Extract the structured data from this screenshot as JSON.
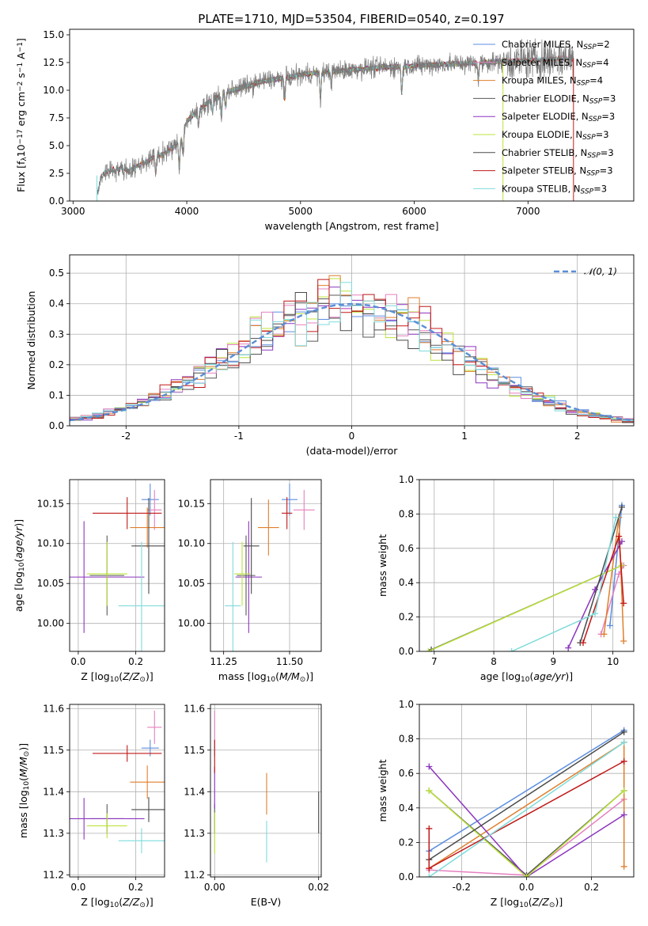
{
  "figure_title": "PLATE=1710, MJD=53504, FIBERID=0540, z=0.197",
  "colors": {
    "Chabrier MILES": "#5b8ee0",
    "Salpeter MILES": "#e580c0",
    "Kroupa MILES": "#e07f2c",
    "Chabrier ELODIE": "#585858",
    "Salpeter ELODIE": "#8c35bf",
    "Kroupa ELODIE": "#bce33a",
    "Chabrier STELIB": "#4a4a4a",
    "Salpeter STELIB": "#c01818",
    "Kroupa STELIB": "#7fdbdb"
  },
  "chart_data": [
    {
      "id": "spectrum",
      "type": "line",
      "xlabel": "wavelength [Angstrom, rest frame]",
      "ylabel": "Flux [f_λ10^-17 erg cm^-2 s^-1 A^-1]",
      "xlim": [
        2970,
        7930
      ],
      "ylim": [
        0,
        15.5
      ],
      "xticks": [
        3000,
        4000,
        5000,
        6000,
        7000
      ],
      "yticks": [
        0.0,
        2.5,
        5.0,
        7.5,
        10.0,
        12.5,
        15.0
      ],
      "legend_position": "top-right",
      "legend": [
        "Chabrier MILES, N_SSP=2",
        "Salpeter MILES, N_SSP=4",
        "Kroupa MILES, N_SSP=4",
        "Chabrier ELODIE, N_SSP=3",
        "Salpeter ELODIE, N_SSP=3",
        "Kroupa ELODIE, N_SSP=3",
        "Chabrier STELIB, N_SSP=3",
        "Salpeter STELIB, N_SSP=3",
        "Kroupa STELIB, N_SSP=3"
      ],
      "continuum": {
        "x": [
          3210,
          3250,
          3300,
          3400,
          3500,
          3600,
          3700,
          3800,
          3900,
          3950,
          4000,
          4100,
          4200,
          4300,
          4400,
          4500,
          4600,
          4700,
          4800,
          4900,
          5000,
          5200,
          5400,
          5600,
          5800,
          6000,
          6200,
          6400,
          6600,
          6800,
          7000,
          7200,
          7400
        ],
        "y": [
          0.3,
          2.3,
          2.7,
          2.9,
          2.8,
          3.3,
          3.9,
          4.3,
          5.0,
          5.6,
          7.2,
          8.2,
          9.0,
          9.5,
          10.0,
          10.3,
          10.6,
          10.9,
          11.0,
          11.2,
          11.4,
          11.6,
          11.8,
          12.0,
          12.1,
          12.2,
          12.3,
          12.4,
          12.5,
          12.6,
          12.7,
          12.8,
          12.9
        ]
      }
    },
    {
      "id": "residuals",
      "type": "line",
      "xlabel": "(data-model)/error",
      "ylabel": "Normed distribution",
      "xlim": [
        -2.5,
        2.5
      ],
      "ylim": [
        0,
        0.56
      ],
      "xticks": [
        -2,
        -1,
        0,
        1,
        2
      ],
      "yticks": [
        0.0,
        0.1,
        0.2,
        0.3,
        0.4,
        0.5
      ],
      "grid": true,
      "legend": [
        "𝒩(0, 1)"
      ],
      "legend_position": "top-right",
      "bin_width": 0.1,
      "gaussian": {
        "mean": 0,
        "sigma": 1
      }
    },
    {
      "id": "age_vs_Z",
      "type": "scatter",
      "xlabel": "Z [log10(Z/Z⊙)]",
      "ylabel": "age  [log10(age/yr)]",
      "xlim": [
        -0.03,
        0.3
      ],
      "ylim": [
        9.965,
        10.18
      ],
      "xticks": [
        0.0,
        0.2
      ],
      "yticks": [
        10.0,
        10.05,
        10.1,
        10.15
      ],
      "grid": true,
      "points": [
        {
          "model": "Chabrier MILES",
          "x": 0.25,
          "y": 10.155,
          "xerr": 0.03,
          "yerr": 0.02
        },
        {
          "model": "Salpeter MILES",
          "x": 0.265,
          "y": 10.142,
          "xerr": 0.025,
          "yerr": 0.025
        },
        {
          "model": "Kroupa MILES",
          "x": 0.24,
          "y": 10.12,
          "xerr": 0.06,
          "yerr": 0.025
        },
        {
          "model": "Chabrier ELODIE",
          "x": 0.1,
          "y": 10.06,
          "xerr": 0.06,
          "yerr": 0.05
        },
        {
          "model": "Salpeter ELODIE",
          "x": 0.02,
          "y": 10.058,
          "xerr": 0.21,
          "yerr": 0.07
        },
        {
          "model": "Kroupa ELODIE",
          "x": 0.1,
          "y": 10.062,
          "xerr": 0.07,
          "yerr": 0.04
        },
        {
          "model": "Chabrier STELIB",
          "x": 0.245,
          "y": 10.097,
          "xerr": 0.06,
          "yerr": 0.06
        },
        {
          "model": "Salpeter STELIB",
          "x": 0.17,
          "y": 10.138,
          "xerr": 0.12,
          "yerr": 0.02
        },
        {
          "model": "Kroupa STELIB",
          "x": 0.22,
          "y": 10.022,
          "xerr": 0.08,
          "yerr": 0.08
        }
      ]
    },
    {
      "id": "age_vs_mass",
      "type": "scatter",
      "xlabel": "mass [log10(M/M⊙)]",
      "ylabel": "",
      "xlim": [
        11.2,
        11.62
      ],
      "ylim": [
        9.965,
        10.18
      ],
      "xticks": [
        11.25,
        11.5
      ],
      "yticks": [
        10.0,
        10.05,
        10.1,
        10.15
      ],
      "grid": true,
      "points": [
        {
          "model": "Chabrier MILES",
          "x": 11.5,
          "y": 10.155,
          "xerr": 0.03,
          "yerr": 0.02
        },
        {
          "model": "Salpeter MILES",
          "x": 11.555,
          "y": 10.142,
          "xerr": 0.04,
          "yerr": 0.025
        },
        {
          "model": "Kroupa MILES",
          "x": 11.42,
          "y": 10.12,
          "xerr": 0.04,
          "yerr": 0.035
        },
        {
          "model": "Chabrier ELODIE",
          "x": 11.335,
          "y": 10.06,
          "xerr": 0.035,
          "yerr": 0.05
        },
        {
          "model": "Salpeter ELODIE",
          "x": 11.345,
          "y": 10.058,
          "xerr": 0.05,
          "yerr": 0.07
        },
        {
          "model": "Kroupa ELODIE",
          "x": 11.32,
          "y": 10.062,
          "xerr": 0.03,
          "yerr": 0.04
        },
        {
          "model": "Chabrier STELIB",
          "x": 11.355,
          "y": 10.097,
          "xerr": 0.03,
          "yerr": 0.06
        },
        {
          "model": "Salpeter STELIB",
          "x": 11.49,
          "y": 10.138,
          "xerr": 0.02,
          "yerr": 0.02
        },
        {
          "model": "Kroupa STELIB",
          "x": 11.285,
          "y": 10.022,
          "xerr": 0.03,
          "yerr": 0.08
        }
      ]
    },
    {
      "id": "weight_vs_age",
      "type": "line",
      "xlabel": "age  [log10(age/yr)]",
      "ylabel": "mass weight",
      "xlim": [
        6.75,
        10.35
      ],
      "ylim": [
        0,
        1.0
      ],
      "xticks": [
        7,
        8,
        9,
        10
      ],
      "yticks": [
        0.0,
        0.2,
        0.4,
        0.6,
        0.8,
        1.0
      ],
      "grid": true,
      "series": [
        {
          "model": "Chabrier MILES",
          "x": [
            9.95,
            10.15
          ],
          "y": [
            0.15,
            0.85
          ]
        },
        {
          "model": "Salpeter MILES",
          "x": [
            9.8,
            10.1,
            10.18
          ],
          "y": [
            0.1,
            0.45,
            0.5
          ]
        },
        {
          "model": "Kroupa MILES",
          "x": [
            9.85,
            10.1,
            10.18
          ],
          "y": [
            0.1,
            0.78,
            0.06
          ]
        },
        {
          "model": "Chabrier ELODIE",
          "x": [
            6.95,
            10.15
          ],
          "y": [
            0.01,
            0.5
          ]
        },
        {
          "model": "Salpeter ELODIE",
          "x": [
            9.25,
            9.7,
            10.15
          ],
          "y": [
            0.02,
            0.36,
            0.64
          ]
        },
        {
          "model": "Kroupa ELODIE",
          "x": [
            6.9,
            10.15
          ],
          "y": [
            0.0,
            0.5
          ]
        },
        {
          "model": "Chabrier STELIB",
          "x": [
            9.45,
            10.15
          ],
          "y": [
            0.05,
            0.84
          ]
        },
        {
          "model": "Salpeter STELIB",
          "x": [
            9.5,
            10.1,
            10.18
          ],
          "y": [
            0.05,
            0.67,
            0.28
          ]
        },
        {
          "model": "Kroupa STELIB",
          "x": [
            8.3,
            9.7,
            10.05
          ],
          "y": [
            0.0,
            0.22,
            0.78
          ]
        }
      ]
    },
    {
      "id": "mass_vs_Z",
      "type": "scatter",
      "xlabel": "Z [log10(Z/Z⊙)]",
      "ylabel": "mass [log10(M/M⊙)]",
      "xlim": [
        -0.03,
        0.3
      ],
      "ylim": [
        11.195,
        11.61
      ],
      "xticks": [
        0.0,
        0.2
      ],
      "yticks": [
        11.2,
        11.3,
        11.4,
        11.5,
        11.6
      ],
      "grid": true,
      "points": [
        {
          "model": "Chabrier MILES",
          "x": 0.25,
          "y": 11.505,
          "xerr": 0.03,
          "yerr": 0.02
        },
        {
          "model": "Salpeter MILES",
          "x": 0.265,
          "y": 11.555,
          "xerr": 0.025,
          "yerr": 0.04
        },
        {
          "model": "Kroupa MILES",
          "x": 0.24,
          "y": 11.423,
          "xerr": 0.06,
          "yerr": 0.04
        },
        {
          "model": "Chabrier ELODIE",
          "x": 0.1,
          "y": 11.335,
          "xerr": 0.06,
          "yerr": 0.035
        },
        {
          "model": "Salpeter ELODIE",
          "x": 0.02,
          "y": 11.335,
          "xerr": 0.21,
          "yerr": 0.05
        },
        {
          "model": "Kroupa ELODIE",
          "x": 0.1,
          "y": 11.318,
          "xerr": 0.07,
          "yerr": 0.03
        },
        {
          "model": "Chabrier STELIB",
          "x": 0.245,
          "y": 11.357,
          "xerr": 0.06,
          "yerr": 0.03
        },
        {
          "model": "Salpeter STELIB",
          "x": 0.17,
          "y": 11.492,
          "xerr": 0.12,
          "yerr": 0.02
        },
        {
          "model": "Kroupa STELIB",
          "x": 0.22,
          "y": 11.282,
          "xerr": 0.08,
          "yerr": 0.03
        }
      ]
    },
    {
      "id": "mass_vs_EBV",
      "type": "scatter",
      "xlabel": "E(B-V)",
      "ylabel": "",
      "xlim": [
        -0.0008,
        0.0205
      ],
      "ylim": [
        11.195,
        11.61
      ],
      "xticks": [
        0.0,
        0.02
      ],
      "yticks": [
        11.2,
        11.3,
        11.4,
        11.5,
        11.6
      ],
      "grid": true,
      "points": [
        {
          "model": "Chabrier MILES",
          "x": 0.0,
          "y": 11.505,
          "xerr": 0,
          "yerr": 0.02
        },
        {
          "model": "Salpeter MILES",
          "x": 0.0,
          "y": 11.555,
          "xerr": 0,
          "yerr": 0.04
        },
        {
          "model": "Kroupa MILES",
          "x": 0.01,
          "y": 11.395,
          "xerr": 0,
          "yerr": 0.05
        },
        {
          "model": "Chabrier ELODIE",
          "x": 0.0,
          "y": 11.335,
          "xerr": 0,
          "yerr": 0.035
        },
        {
          "model": "Salpeter ELODIE",
          "x": 0.0,
          "y": 11.41,
          "xerr": 0,
          "yerr": 0.05
        },
        {
          "model": "Kroupa ELODIE",
          "x": 0.0,
          "y": 11.3,
          "xerr": 0,
          "yerr": 0.05
        },
        {
          "model": "Chabrier STELIB",
          "x": 0.02,
          "y": 11.35,
          "xerr": 0,
          "yerr": 0.05
        },
        {
          "model": "Salpeter STELIB",
          "x": 0.0,
          "y": 11.485,
          "xerr": 0,
          "yerr": 0.04
        },
        {
          "model": "Kroupa STELIB",
          "x": 0.01,
          "y": 11.28,
          "xerr": 0,
          "yerr": 0.05
        }
      ]
    },
    {
      "id": "weight_vs_Z",
      "type": "line",
      "xlabel": "Z [log10(Z/Z⊙)]",
      "ylabel": "mass weight",
      "xlim": [
        -0.33,
        0.33
      ],
      "ylim": [
        0,
        1.0
      ],
      "xticks": [
        -0.2,
        0.0,
        0.2
      ],
      "yticks": [
        0.0,
        0.2,
        0.4,
        0.6,
        0.8,
        1.0
      ],
      "grid": true,
      "series": [
        {
          "model": "Chabrier MILES",
          "x": [
            -0.3,
            0.3
          ],
          "y": [
            0.15,
            0.85
          ]
        },
        {
          "model": "Salpeter MILES",
          "x": [
            -0.3,
            0.0,
            0.3
          ],
          "y": [
            0.04,
            0.01,
            0.45
          ]
        },
        {
          "model": "Kroupa MILES",
          "x": [
            -0.3,
            0.3,
            0.3
          ],
          "y": [
            0.05,
            0.78,
            0.06
          ]
        },
        {
          "model": "Chabrier ELODIE",
          "x": [
            -0.3,
            0.0,
            0.3
          ],
          "y": [
            0.5,
            0.01,
            0.5
          ]
        },
        {
          "model": "Salpeter ELODIE",
          "x": [
            -0.3,
            0.0,
            0.3
          ],
          "y": [
            0.64,
            0.0,
            0.36
          ]
        },
        {
          "model": "Kroupa ELODIE",
          "x": [
            -0.3,
            0.0,
            0.3
          ],
          "y": [
            0.5,
            0.0,
            0.5
          ]
        },
        {
          "model": "Chabrier STELIB",
          "x": [
            -0.3,
            0.3
          ],
          "y": [
            0.1,
            0.84
          ]
        },
        {
          "model": "Salpeter STELIB",
          "x": [
            -0.3,
            -0.3,
            0.3
          ],
          "y": [
            0.28,
            0.05,
            0.67
          ]
        },
        {
          "model": "Kroupa STELIB",
          "x": [
            -0.3,
            0.3
          ],
          "y": [
            0.0,
            0.78
          ]
        }
      ]
    }
  ]
}
